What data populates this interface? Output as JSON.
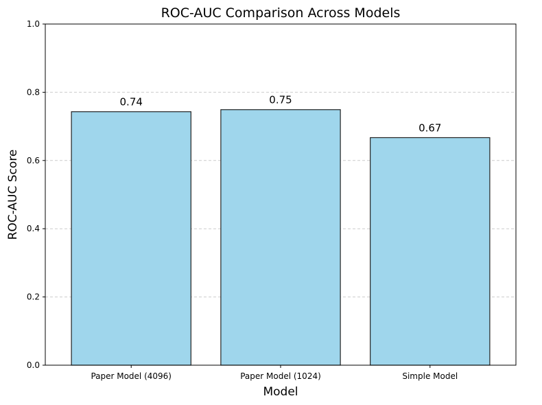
{
  "chart_data": {
    "type": "bar",
    "title": "ROC-AUC Comparison Across Models",
    "xlabel": "Model",
    "ylabel": "ROC-AUC Score",
    "categories": [
      "Paper Model (4096)",
      "Paper Model (1024)",
      "Simple Model"
    ],
    "values": [
      0.743,
      0.749,
      0.667
    ],
    "data_labels": [
      "0.74",
      "0.75",
      "0.67"
    ],
    "ylim": [
      0,
      1.0
    ],
    "yticks": [
      0.0,
      0.2,
      0.4,
      0.6,
      0.8,
      1.0
    ],
    "ytick_labels": [
      "0.0",
      "0.2",
      "0.4",
      "0.6",
      "0.8",
      "1.0"
    ],
    "grid": "horizontal dashed",
    "bar_color": "#9fd6ec",
    "edge_color": "#222222"
  }
}
